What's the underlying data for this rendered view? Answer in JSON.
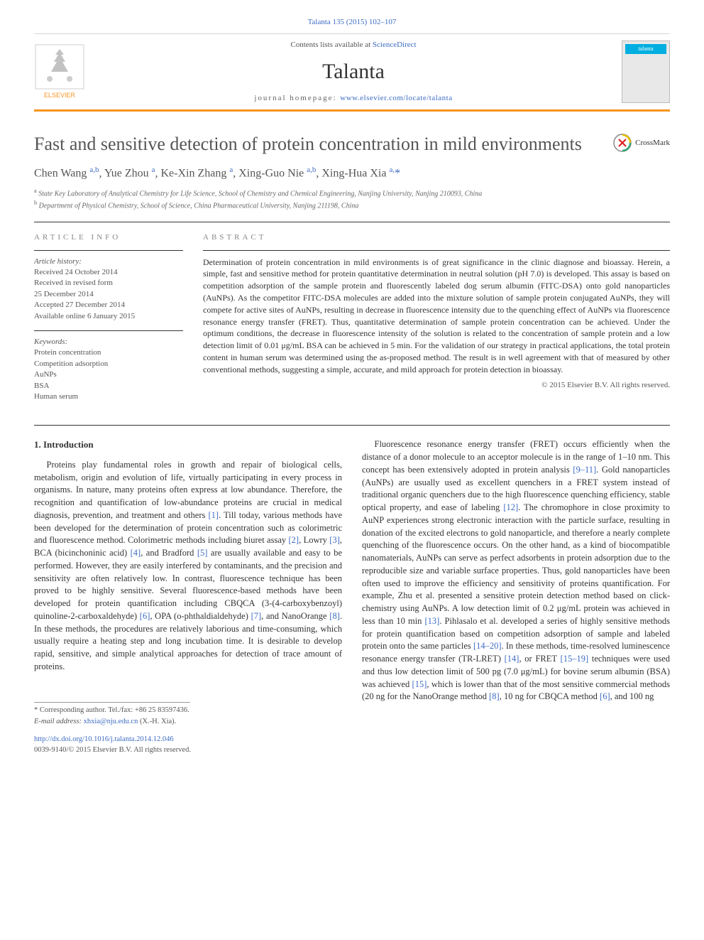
{
  "journal": {
    "citation": "Talanta 135 (2015) 102–107",
    "contentsPrefix": "Contents lists available at ",
    "contentsLink": "ScienceDirect",
    "name": "Talanta",
    "homepagePrefix": "journal homepage: ",
    "homepageUrl": "www.elsevier.com/locate/talanta",
    "coverLabel": "talanta"
  },
  "crossmark": {
    "label": "CrossMark"
  },
  "article": {
    "title": "Fast and sensitive detection of protein concentration in mild environments",
    "authorsHtml": "Chen Wang <sup>a,b</sup>, Yue Zhou <sup>a</sup>, Ke-Xin Zhang <sup>a</sup>, Xing-Guo Nie <sup>a,b</sup>, Xing-Hua Xia <sup>a,</sup><a>*</a>",
    "affiliations": [
      "a State Key Laboratory of Analytical Chemistry for Life Science, School of Chemistry and Chemical Engineering, Nanjing University, Nanjing 210093, China",
      "b Department of Physical Chemistry, School of Science, China Pharmaceutical University, Nanjing 211198, China"
    ]
  },
  "articleInfo": {
    "heading": "ARTICLE INFO",
    "historyLabel": "Article history:",
    "history": [
      "Received 24 October 2014",
      "Received in revised form",
      "25 December 2014",
      "Accepted 27 December 2014",
      "Available online 6 January 2015"
    ],
    "keywordsLabel": "Keywords:",
    "keywords": [
      "Protein concentration",
      "Competition adsorption",
      "AuNPs",
      "BSA",
      "Human serum"
    ]
  },
  "abstract": {
    "heading": "ABSTRACT",
    "text": "Determination of protein concentration in mild environments is of great significance in the clinic diagnose and bioassay. Herein, a simple, fast and sensitive method for protein quantitative determination in neutral solution (pH 7.0) is developed. This assay is based on competition adsorption of the sample protein and fluorescently labeled dog serum albumin (FITC-DSA) onto gold nanoparticles (AuNPs). As the competitor FITC-DSA molecules are added into the mixture solution of sample protein conjugated AuNPs, they will compete for active sites of AuNPs, resulting in decrease in fluorescence intensity due to the quenching effect of AuNPs via fluorescence resonance energy transfer (FRET). Thus, quantitative determination of sample protein concentration can be achieved. Under the optimum conditions, the decrease in fluorescence intensity of the solution is related to the concentration of sample protein and a low detection limit of 0.01 μg/mL BSA can be achieved in 5 min. For the validation of our strategy in practical applications, the total protein content in human serum was determined using the as-proposed method. The result is in well agreement with that of measured by other conventional methods, suggesting a simple, accurate, and mild approach for protein detection in bioassay.",
    "copyright": "© 2015 Elsevier B.V. All rights reserved."
  },
  "body": {
    "sectionNumber": "1.",
    "sectionTitle": "Introduction",
    "col1p1Html": "Proteins play fundamental roles in growth and repair of biological cells, metabolism, origin and evolution of life, virtually participating in every process in organisms. In nature, many proteins often express at low abundance. Therefore, the recognition and quantification of low-abundance proteins are crucial in medical diagnosis, prevention, and treatment and others <span class=\"ref-link\">[1]</span>. Till today, various methods have been developed for the determination of protein concentration such as colorimetric and fluorescence method. Colorimetric methods including biuret assay <span class=\"ref-link\">[2]</span>, Lowry <span class=\"ref-link\">[3]</span>, BCA (bicinchoninic acid) <span class=\"ref-link\">[4]</span>, and Bradford <span class=\"ref-link\">[5]</span> are usually available and easy to be performed. However, they are easily interfered by contaminants, and the precision and sensitivity are often relatively low. In contrast, fluorescence technique has been proved to be highly sensitive. Several fluorescence-based methods have been developed for protein quantification including CBQCA (3-(4-carboxybenzoyl) quinoline-2-carboxaldehyde) <span class=\"ref-link\">[6]</span>, OPA (o-phthaldialdehyde) <span class=\"ref-link\">[7]</span>, and NanoOrange <span class=\"ref-link\">[8]</span>. In these methods, the procedures are relatively laborious and time-consuming, which usually require a heating step and long incubation time. It is desirable to develop rapid, sensitive, and simple analytical approaches for detection of trace amount of proteins.",
    "col2p1Html": "Fluorescence resonance energy transfer (FRET) occurs efficiently when the distance of a donor molecule to an acceptor molecule is in the range of 1–10 nm. This concept has been extensively adopted in protein analysis <span class=\"ref-link\">[9–11]</span>. Gold nanoparticles (AuNPs) are usually used as excellent quenchers in a FRET system instead of traditional organic quenchers due to the high fluorescence quenching efficiency, stable optical property, and ease of labeling <span class=\"ref-link\">[12]</span>. The chromophore in close proximity to AuNP experiences strong electronic interaction with the particle surface, resulting in donation of the excited electrons to gold nanoparticle, and therefore a nearly complete quenching of the fluorescence occurs. On the other hand, as a kind of biocompatible nanomaterials, AuNPs can serve as perfect adsorbents in protein adsorption due to the reproducible size and variable surface properties. Thus, gold nanoparticles have been often used to improve the efficiency and sensitivity of proteins quantification. For example, Zhu et al. presented a sensitive protein detection method based on click-chemistry using AuNPs. A low detection limit of 0.2 μg/mL protein was achieved in less than 10 min <span class=\"ref-link\">[13]</span>. Pihlasalo et al. developed a series of highly sensitive methods for protein quantification based on competition adsorption of sample and labeled protein onto the same particles <span class=\"ref-link\">[14–20]</span>. In these methods, time-resolved luminescence resonance energy transfer (TR-LRET) <span class=\"ref-link\">[14]</span>, or FRET <span class=\"ref-link\">[15–19]</span> techniques were used and thus low detection limit of 500 pg (7.0 μg/mL) for bovine serum albumin (BSA) was achieved <span class=\"ref-link\">[15]</span>, which is lower than that of the most sensitive commercial methods (20 ng for the NanoOrange method <span class=\"ref-link\">[8]</span>, 10 ng for CBQCA method <span class=\"ref-link\">[6]</span>, and 100 ng"
  },
  "footer": {
    "corresponding": "* Corresponding author. Tel./fax: +86 25 83597436.",
    "emailLabel": "E-mail address: ",
    "email": "xhxia@nju.edu.cn",
    "emailSuffix": " (X.-H. Xia).",
    "doiUrl": "http://dx.doi.org/10.1016/j.talanta.2014.12.046",
    "issnLine": "0039-9140/© 2015 Elsevier B.V. All rights reserved."
  },
  "colors": {
    "link": "#3d6cc4",
    "orangeBar": "#f7941e",
    "coverBand": "#00aee0",
    "textGray": "#555555"
  }
}
